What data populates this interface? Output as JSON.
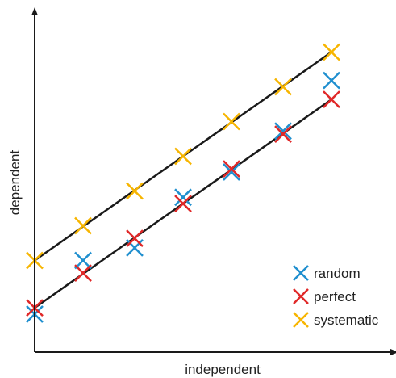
{
  "chart_data": {
    "type": "scatter",
    "title": "",
    "xlabel": "independent",
    "ylabel": "dependent",
    "xlim": [
      0,
      10
    ],
    "ylim": [
      0,
      10
    ],
    "grid": false,
    "legend_position": "bottom-right",
    "series": [
      {
        "name": "random",
        "color": "#1f8fcf",
        "marker": "x",
        "x": [
          0,
          1.5,
          3.1,
          4.6,
          6.1,
          7.7,
          9.2
        ],
        "y": [
          1.1,
          2.8,
          3.2,
          4.8,
          5.6,
          6.9,
          8.5
        ]
      },
      {
        "name": "perfect",
        "color": "#e02828",
        "marker": "x",
        "x": [
          0,
          1.5,
          3.1,
          4.6,
          6.1,
          7.7,
          9.2
        ],
        "y": [
          1.3,
          2.4,
          3.5,
          4.6,
          5.7,
          6.8,
          7.9
        ]
      },
      {
        "name": "systematic",
        "color": "#f7b500",
        "marker": "x",
        "x": [
          0,
          1.5,
          3.1,
          4.6,
          6.1,
          7.7,
          9.2
        ],
        "y": [
          2.8,
          3.9,
          5.0,
          6.1,
          7.2,
          8.3,
          9.4
        ]
      }
    ],
    "fit_lines": [
      {
        "series": "perfect",
        "color": "#1a1a1a",
        "x": [
          0,
          9.2
        ],
        "y": [
          1.3,
          7.9
        ]
      },
      {
        "series": "systematic",
        "color": "#1a1a1a",
        "x": [
          0,
          9.2
        ],
        "y": [
          2.8,
          9.4
        ]
      }
    ]
  }
}
